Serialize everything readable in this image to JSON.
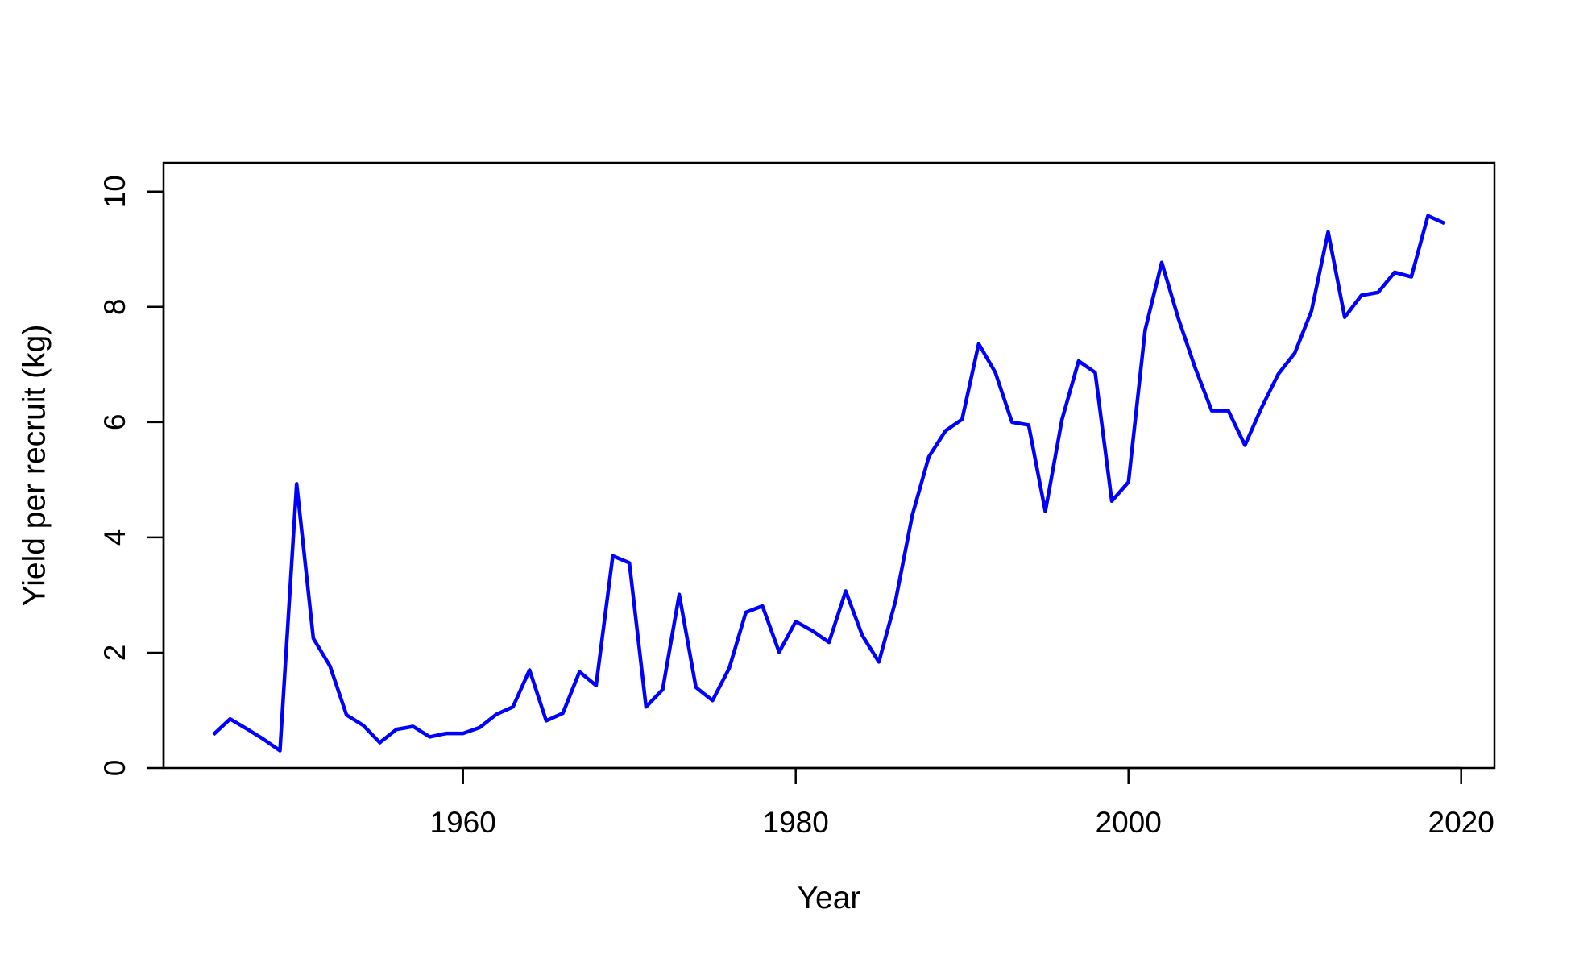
{
  "chart_data": {
    "type": "line",
    "title": "",
    "xlabel": "Year",
    "ylabel": "Yield per recruit (kg)",
    "xlim": [
      1942,
      2022
    ],
    "ylim": [
      0,
      10.5
    ],
    "x_ticks": [
      1960,
      1980,
      2000,
      2020
    ],
    "y_ticks": [
      0,
      2,
      4,
      6,
      8,
      10
    ],
    "grid": false,
    "legend": "none",
    "series": [
      {
        "color": "#0000ff",
        "x": [
          1945,
          1946,
          1947,
          1948,
          1949,
          1950,
          1951,
          1952,
          1953,
          1954,
          1955,
          1956,
          1957,
          1958,
          1959,
          1960,
          1961,
          1962,
          1963,
          1964,
          1965,
          1966,
          1967,
          1968,
          1969,
          1970,
          1971,
          1972,
          1973,
          1974,
          1975,
          1976,
          1977,
          1978,
          1979,
          1980,
          1981,
          1982,
          1983,
          1984,
          1985,
          1986,
          1987,
          1988,
          1989,
          1990,
          1991,
          1992,
          1993,
          1994,
          1995,
          1996,
          1997,
          1998,
          1999,
          2000,
          2001,
          2002,
          2003,
          2004,
          2005,
          2006,
          2007,
          2008,
          2009,
          2010,
          2011,
          2012,
          2013,
          2014,
          2015,
          2016,
          2017,
          2018,
          2019
        ],
        "values": [
          0.58,
          0.85,
          0.68,
          0.5,
          0.3,
          4.93,
          2.25,
          1.77,
          0.92,
          0.74,
          0.44,
          0.67,
          0.72,
          0.54,
          0.6,
          0.6,
          0.7,
          0.93,
          1.06,
          1.7,
          0.82,
          0.95,
          1.67,
          1.43,
          3.68,
          3.56,
          1.06,
          1.36,
          3.01,
          1.4,
          1.17,
          1.73,
          2.7,
          2.81,
          2.01,
          2.54,
          2.38,
          2.18,
          3.07,
          2.3,
          1.84,
          2.9,
          4.38,
          5.4,
          5.85,
          6.05,
          7.36,
          6.86,
          6.0,
          5.95,
          4.45,
          6.04,
          7.06,
          6.86,
          4.63,
          4.96,
          7.6,
          8.77,
          7.8,
          6.95,
          6.2,
          6.2,
          5.6,
          6.25,
          6.83,
          7.2,
          7.93,
          9.3,
          7.82,
          8.2,
          8.25,
          8.6,
          8.52,
          9.58,
          9.45
        ]
      }
    ]
  }
}
